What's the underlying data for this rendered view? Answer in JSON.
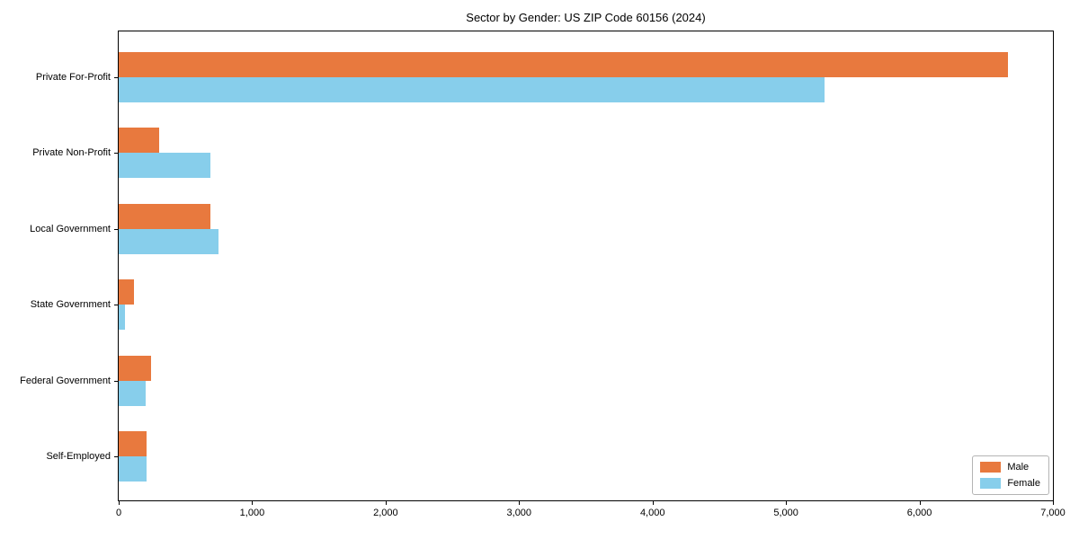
{
  "title": "Sector by Gender: US ZIP Code 60156 (2024)",
  "chart_data": {
    "type": "bar",
    "orientation": "horizontal",
    "title": "Sector by Gender: US ZIP Code 60156 (2024)",
    "categories": [
      "Private For-Profit",
      "Private Non-Profit",
      "Local Government",
      "State Government",
      "Federal Government",
      "Self-Employed"
    ],
    "series": [
      {
        "name": "Male",
        "color": "#e8793e",
        "values": [
          6660,
          300,
          690,
          115,
          240,
          210
        ]
      },
      {
        "name": "Female",
        "color": "#87ceeb",
        "values": [
          5290,
          690,
          750,
          45,
          200,
          210
        ]
      }
    ],
    "xlim": [
      0,
      7000
    ],
    "x_ticks": [
      0,
      1000,
      2000,
      3000,
      4000,
      5000,
      6000,
      7000
    ],
    "x_tick_labels": [
      "0",
      "1,000",
      "2,000",
      "3,000",
      "4,000",
      "5,000",
      "6,000",
      "7,000"
    ],
    "xlabel": "",
    "ylabel": "",
    "grid": false,
    "legend_position": "lower right",
    "frame": true,
    "background_color": "#ffffff",
    "text_color": "#000000"
  }
}
